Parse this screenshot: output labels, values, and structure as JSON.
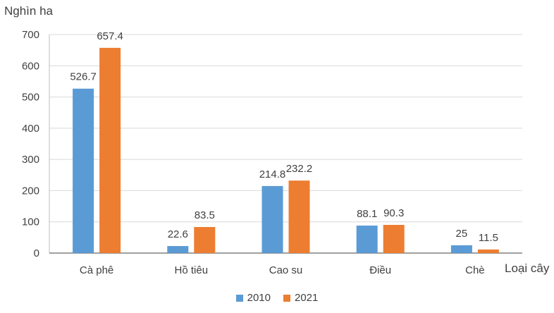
{
  "chart_data": {
    "type": "bar",
    "ylabel": "Nghìn ha",
    "xlabel": "Loại cây",
    "categories": [
      "Cà phê",
      "Hồ tiêu",
      "Cao su",
      "Điều",
      "Chè"
    ],
    "series": [
      {
        "name": "2010",
        "color": "#5B9BD5",
        "values": [
          526.7,
          22.6,
          214.8,
          88.1,
          25
        ],
        "labels": [
          "526.7",
          "22.6",
          "214.8",
          "88.1",
          "25"
        ]
      },
      {
        "name": "2021",
        "color": "#ED7D31",
        "values": [
          657.4,
          83.5,
          232.2,
          90.3,
          11.5
        ],
        "labels": [
          "657.4",
          "83.5",
          "232.2",
          "90.3",
          "11.5"
        ]
      }
    ],
    "ylim": [
      0,
      700
    ],
    "yticks": [
      "0",
      "100",
      "200",
      "300",
      "400",
      "500",
      "600",
      "700"
    ],
    "grid": true,
    "legend_position": "bottom"
  }
}
